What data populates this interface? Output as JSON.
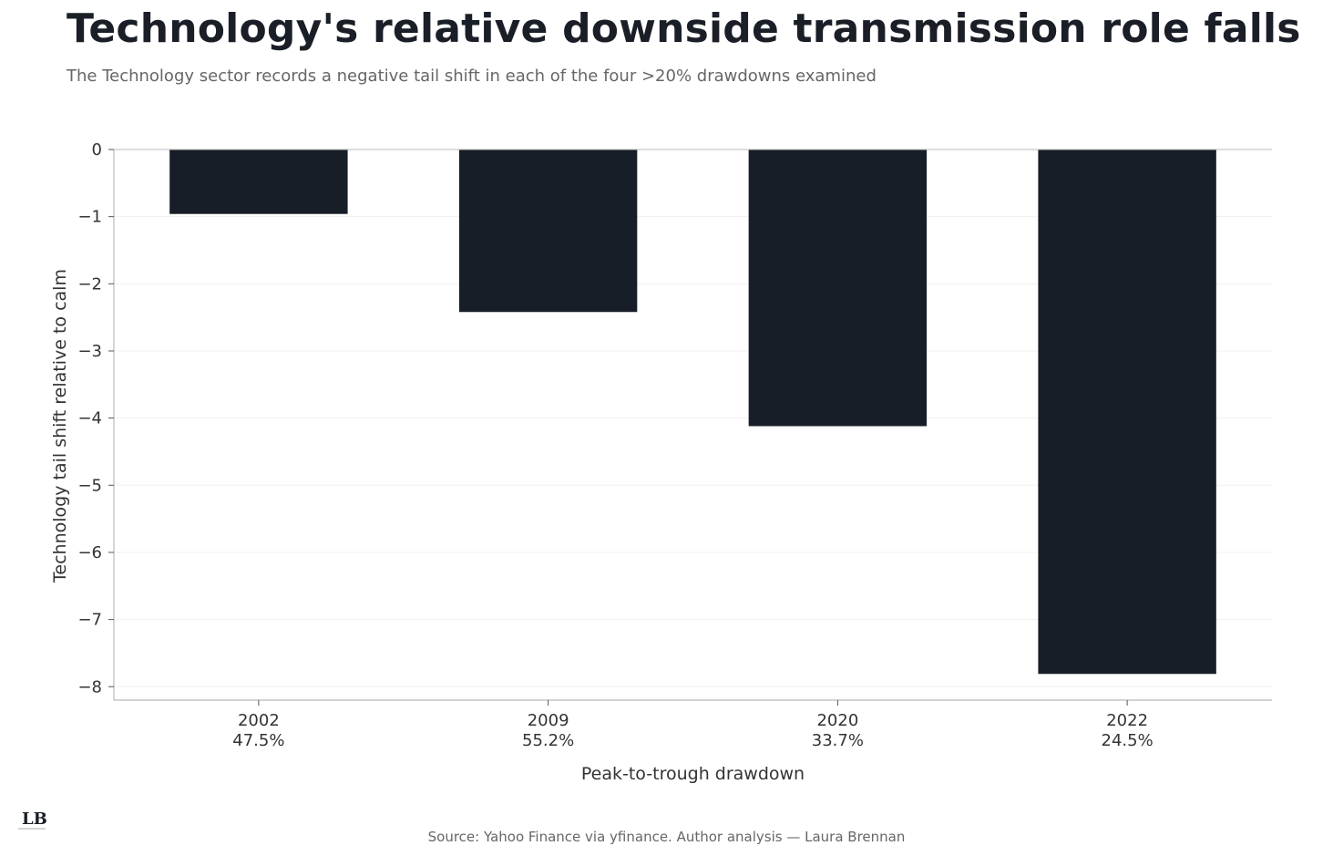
{
  "title": "Technology's relative downside transmission role falls",
  "subtitle": "The Technology sector records a negative tail shift in each of the four >20% drawdowns examined",
  "source": "Source: Yahoo Finance via yfinance. Author analysis — Laura Brennan",
  "logo_text": "LB",
  "colors": {
    "bar": "#181e27",
    "axis": "#bbbbbb",
    "grid": "#f0f0f0",
    "text": "#333333"
  },
  "chart_data": {
    "type": "bar",
    "title": "Technology's relative downside transmission role falls",
    "xlabel": "Peak-to-trough drawdown",
    "ylabel": "Technology tail shift relative to calm",
    "categories": [
      "2002",
      "2009",
      "2020",
      "2022"
    ],
    "category_sublabels": [
      "47.5%",
      "55.2%",
      "33.7%",
      "24.5%"
    ],
    "values": [
      -0.96,
      -2.42,
      -4.12,
      -7.81
    ],
    "ylim": [
      -8.2,
      0
    ],
    "yticks": [
      0,
      -1,
      -2,
      -3,
      -4,
      -5,
      -6,
      -7,
      -8
    ],
    "ytick_labels": [
      "0",
      "−1",
      "−2",
      "−3",
      "−4",
      "−5",
      "−6",
      "−7",
      "−8"
    ],
    "grid": "horizontal",
    "legend": "none"
  }
}
